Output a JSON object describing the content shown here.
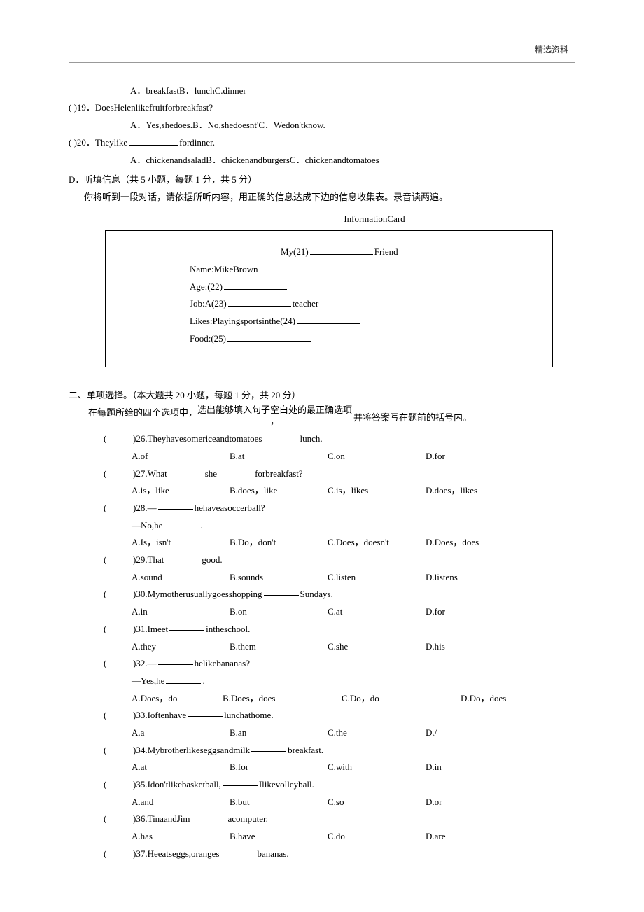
{
  "header": {
    "topRight": "精选资料"
  },
  "listeningTail": {
    "q18_options": "A．breakfastB．lunchC.dinner",
    "q19": "(        )19．DoesHelenlikefruitforbreakfast?",
    "q19_options": "A．Yes,shedoes.B．No,shedoesnt'C．Wedon'tknow.",
    "q20_pre": "(        )20．Theylike",
    "q20_post": "fordinner.",
    "q20_options": "A．chickenandsaladB．chickenandburgersC．chickenandtomatoes"
  },
  "sectionD": {
    "label": "D．",
    "title": "听填信息（共 5 小题，每题 1 分，共 5 分）",
    "intro": "你将听到一段对话，请依据所听内容，用正确的信息达成下边的信息收集表。录音读两遍。",
    "cardTitle": "InformationCard",
    "card": {
      "line1_pre": "My(21)",
      "line1_post": "Friend",
      "line2": "Name:MikeBrown",
      "line3_pre": "Age:(22)",
      "line4_pre": "Job:A(23)",
      "line4_post": "teacher",
      "line5_pre": "Likes:Playingsportsinthe(24)",
      "line6_pre": "Food:(25)"
    }
  },
  "sectionTwo": {
    "title": "二、单项选择。（本大题共 20 小题，每题 1 分，共 20 分）",
    "introLeft": "在每题所给的四个选项中，",
    "introMidTop": "选出能够填入句子空白处的最正确选项",
    "introMidBot": "，",
    "introRight": "并将答案写在题前的括号内。",
    "questions": [
      {
        "n": "26",
        "stem_pre": ")26.Theyhavesomericeandtomatoes",
        "blank": "sm",
        "stem_post": "lunch.",
        "opts": [
          "A.of",
          "B.at",
          "C.on",
          "D.for"
        ]
      },
      {
        "n": "27",
        "stem_pre": ")27.What",
        "blank": "sm",
        "stem_mid": "she",
        "blank2": "sm",
        "stem_post": "forbreakfast?",
        "opts": [
          "A.is，like",
          "B.does，like",
          "C.is，likes",
          "D.does，likes"
        ]
      },
      {
        "n": "28",
        "stem_pre": ")28.—",
        "blank": "sm",
        "stem_post": "hehaveasoccerball?",
        "sub_pre": "—No,he",
        "sub_blank": "sm",
        "sub_post": ".",
        "opts": [
          "A.Is，isn't",
          "B.Do，don't",
          "C.Does，doesn't",
          "D.Does，does"
        ]
      },
      {
        "n": "29",
        "stem_pre": ")29.That",
        "blank": "sm",
        "stem_post": "good.",
        "opts": [
          "A.sound",
          "B.sounds",
          "C.listen",
          "D.listens"
        ]
      },
      {
        "n": "30",
        "stem_pre": ")30.Mymotherusuallygoesshopping",
        "blank": "sm",
        "stem_post": "Sundays.",
        "opts": [
          "A.in",
          "B.on",
          "C.at",
          "D.for"
        ]
      },
      {
        "n": "31",
        "stem_pre": ")31.Imeet",
        "blank": "sm",
        "stem_post": "intheschool.",
        "opts": [
          "A.they",
          "B.them",
          "C.she",
          "D.his"
        ]
      },
      {
        "n": "32",
        "stem_pre": ")32.—",
        "blank": "sm",
        "stem_post": "helikebananas?",
        "sub_pre": "—Yes,he",
        "sub_blank": "sm",
        "sub_post": ".",
        "opts": [
          "A.Does，do",
          "B.Does，does",
          "C.Do，do",
          "D.Do，does"
        ],
        "special": "32"
      },
      {
        "n": "33",
        "stem_pre": ")33.Ioftenhave",
        "blank": "sm",
        "stem_post": "lunchathome.",
        "opts": [
          "A.a",
          "B.an",
          "C.the",
          "D./"
        ]
      },
      {
        "n": "34",
        "stem_pre": ")34.Mybrotherlikeseggsandmilk",
        "blank": "sm",
        "stem_post": "breakfast.",
        "opts": [
          "A.at",
          "B.for",
          "C.with",
          "D.in"
        ]
      },
      {
        "n": "35",
        "stem_pre": ")35.Idon'tlikebasketball,",
        "blank": "sm",
        "stem_post": "Ilikevolleyball.",
        "opts": [
          "A.and",
          "B.but",
          "C.so",
          "D.or"
        ]
      },
      {
        "n": "36",
        "stem_pre": ")36.TinaandJim",
        "blank": "sm",
        "stem_post": "acomputer.",
        "opts": [
          "A.has",
          "B.have",
          "C.do",
          "D.are"
        ]
      },
      {
        "n": "37",
        "stem_pre": ")37.Heeatseggs,oranges",
        "blank": "sm",
        "stem_post": "bananas.",
        "opts": null
      }
    ]
  }
}
